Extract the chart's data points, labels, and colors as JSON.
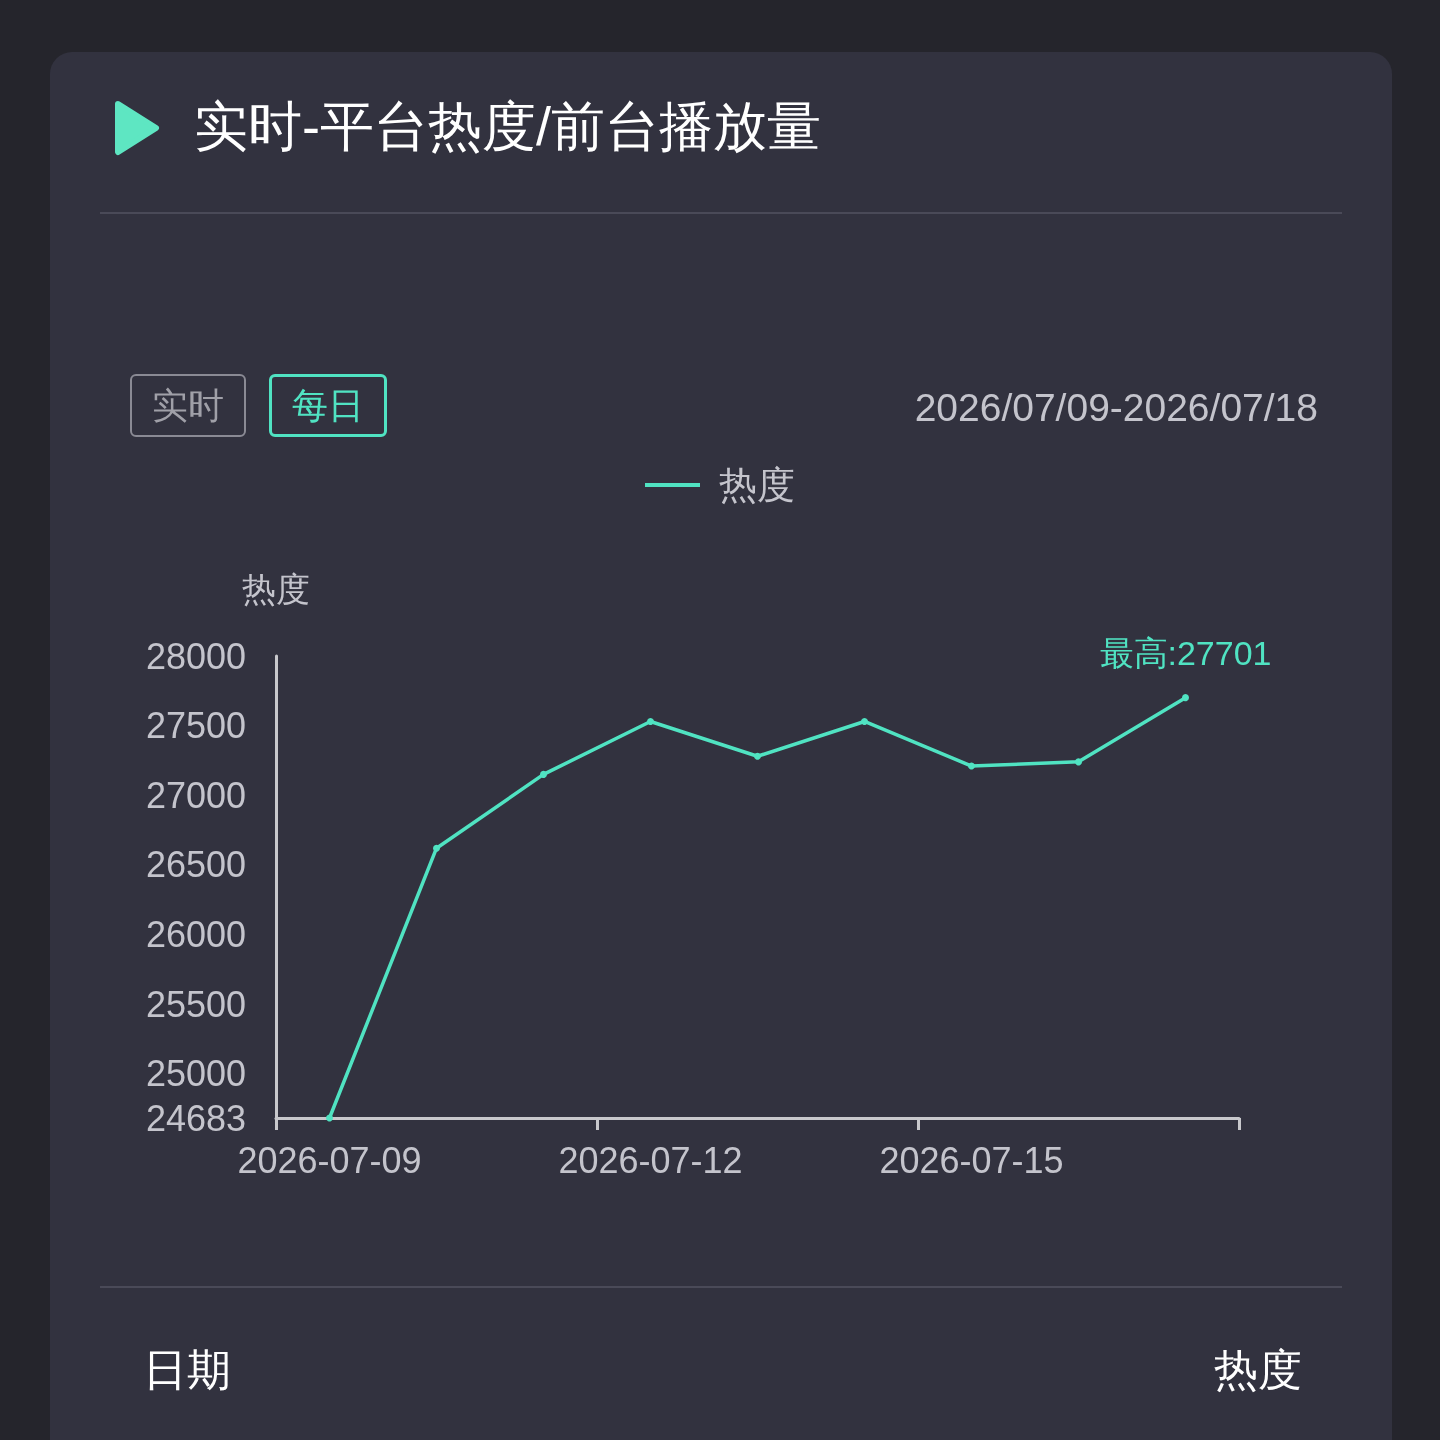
{
  "chart_data": {
    "type": "line",
    "title": "实时-平台热度/前台播放量",
    "subtitle": "2026/07/09-2026/07/18",
    "ylabel": "热度",
    "categories": [
      "2026-07-09",
      null,
      null,
      "2026-07-12",
      null,
      null,
      "2026-07-15",
      null,
      null
    ],
    "series": [
      {
        "name": "热度",
        "color": "#50e3c2",
        "values": [
          24683,
          26620,
          27150,
          27530,
          27280,
          27530,
          27210,
          27240,
          27701
        ]
      }
    ],
    "ylim": [
      24683,
      28000
    ],
    "yticks": [
      24683,
      25000,
      25500,
      26000,
      26500,
      27000,
      27500,
      28000
    ],
    "grid": false,
    "legend": "top",
    "marker": "circle",
    "line_style": "solid",
    "annotations": [
      "实时",
      "每日",
      {
        "text": "最高:27701",
        "y": 27701
      },
      "日期",
      "热度"
    ]
  }
}
